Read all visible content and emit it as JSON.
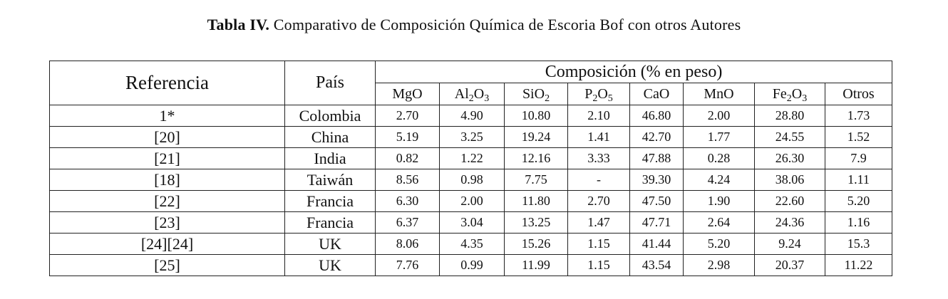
{
  "caption": {
    "bold": "Tabla IV.",
    "text": " Comparativo de Composición Química de Escoria Bof con otros Autores"
  },
  "header": {
    "referencia": "Referencia",
    "pais": "País",
    "composicion": "Composición (% en peso)",
    "components": [
      {
        "base": "MgO",
        "parts": [
          [
            "MgO",
            ""
          ]
        ]
      },
      {
        "base": "Al2O3",
        "parts": [
          [
            "Al",
            "2"
          ],
          [
            "O",
            "3"
          ]
        ]
      },
      {
        "base": "SiO2",
        "parts": [
          [
            "SiO",
            "2"
          ]
        ]
      },
      {
        "base": "P2O5",
        "parts": [
          [
            "P",
            "2"
          ],
          [
            "O",
            "5"
          ]
        ]
      },
      {
        "base": "CaO",
        "parts": [
          [
            "CaO",
            ""
          ]
        ]
      },
      {
        "base": "MnO",
        "parts": [
          [
            "MnO",
            ""
          ]
        ]
      },
      {
        "base": "Fe2O3",
        "parts": [
          [
            "Fe",
            "2"
          ],
          [
            "O",
            "3"
          ]
        ]
      },
      {
        "base": "Otros",
        "parts": [
          [
            "Otros",
            ""
          ]
        ]
      }
    ]
  },
  "rows": [
    {
      "ref": "1*",
      "pais": "Colombia",
      "values": [
        "2.70",
        "4.90",
        "10.80",
        "2.10",
        "46.80",
        "2.00",
        "28.80",
        "1.73"
      ]
    },
    {
      "ref": "[20]",
      "pais": "China",
      "values": [
        "5.19",
        "3.25",
        "19.24",
        "1.41",
        "42.70",
        "1.77",
        "24.55",
        "1.52"
      ]
    },
    {
      "ref": "[21]",
      "pais": "India",
      "values": [
        "0.82",
        "1.22",
        "12.16",
        "3.33",
        "47.88",
        "0.28",
        "26.30",
        "7.9"
      ]
    },
    {
      "ref": "[18]",
      "pais": "Taiwán",
      "values": [
        "8.56",
        "0.98",
        "7.75",
        "-",
        "39.30",
        "4.24",
        "38.06",
        "1.11"
      ]
    },
    {
      "ref": "[22]",
      "pais": "Francia",
      "values": [
        "6.30",
        "2.00",
        "11.80",
        "2.70",
        "47.50",
        "1.90",
        "22.60",
        "5.20"
      ]
    },
    {
      "ref": "[23]",
      "pais": "Francia",
      "values": [
        "6.37",
        "3.04",
        "13.25",
        "1.47",
        "47.71",
        "2.64",
        "24.36",
        "1.16"
      ]
    },
    {
      "ref": "[24][24]",
      "pais": "UK",
      "values": [
        "8.06",
        "4.35",
        "15.26",
        "1.15",
        "41.44",
        "5.20",
        "9.24",
        "15.3"
      ]
    },
    {
      "ref": "[25]",
      "pais": "UK",
      "values": [
        "7.76",
        "0.99",
        "11.99",
        "1.15",
        "43.54",
        "2.98",
        "20.37",
        "11.22"
      ]
    }
  ]
}
